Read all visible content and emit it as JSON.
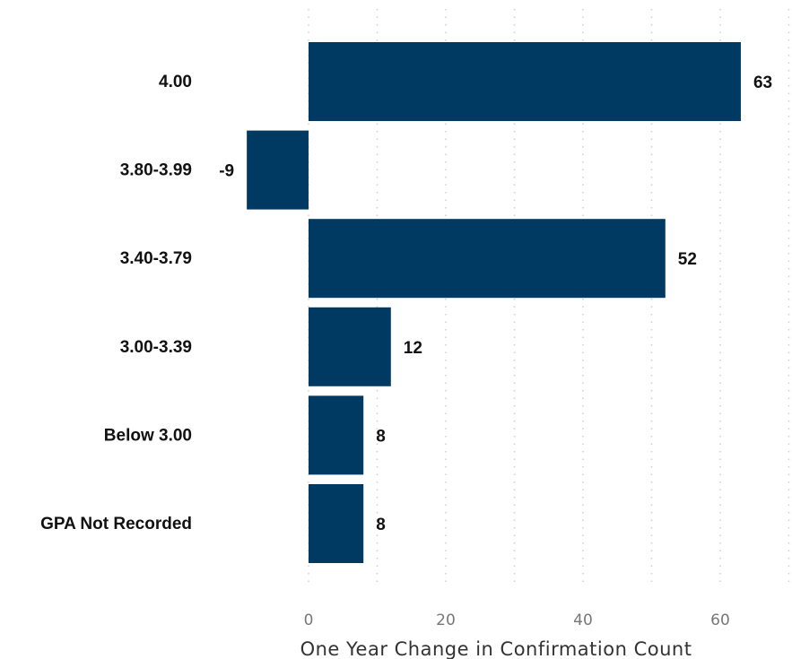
{
  "chart_data": {
    "type": "bar",
    "orientation": "horizontal",
    "categories": [
      "4.00",
      "3.80-3.99",
      "3.40-3.79",
      "3.00-3.39",
      "Below 3.00",
      "GPA Not Recorded"
    ],
    "values": [
      63,
      -9,
      52,
      12,
      8,
      8
    ],
    "value_labels": [
      "63",
      "-9",
      "52",
      "12",
      "8",
      "8"
    ],
    "xlabel": "One Year Change in Confirmation Count",
    "ylabel": "",
    "xlim": [
      -9,
      70
    ],
    "xticks": [
      0,
      20,
      40,
      60
    ],
    "xtick_labels": [
      "0",
      "20",
      "40",
      "60"
    ],
    "grid": "vertical-dotted",
    "bar_color": "#003a63",
    "legend": "none"
  }
}
